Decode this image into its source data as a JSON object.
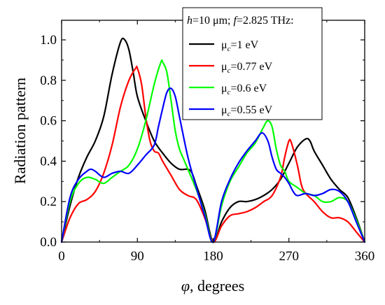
{
  "chart_data": {
    "type": "line",
    "xlabel_symbol": "φ",
    "xlabel_rest": ", degrees",
    "ylabel": "Radiation pattern",
    "xlim": [
      0,
      360
    ],
    "ylim": [
      0,
      1.05
    ],
    "xticks": [
      0,
      90,
      180,
      270,
      360
    ],
    "xtick_labels": [
      "0",
      "90",
      "180",
      "270",
      "360"
    ],
    "yticks": [
      0,
      0.2,
      0.4,
      0.6,
      0.8,
      1.0
    ],
    "ytick_labels": [
      "0.0",
      "0.2",
      "0.4",
      "0.6",
      "0.8",
      "1.0"
    ],
    "grid": false,
    "legend_position": "top-right",
    "legend_title": {
      "h_sym": "h",
      "h_val": "=10 μm; ",
      "f_sym": "f",
      "f_val": "=2.825 THz:"
    },
    "series": [
      {
        "name": "μc=1 eV",
        "label_mu": "μ",
        "label_sub": "c",
        "label_val": "=1 eV",
        "color": "#000000",
        "points": [
          [
            0,
            0
          ],
          [
            10,
            0.18
          ],
          [
            20,
            0.32
          ],
          [
            30,
            0.42
          ],
          [
            40,
            0.5
          ],
          [
            50,
            0.62
          ],
          [
            60,
            0.83
          ],
          [
            70,
            0.99
          ],
          [
            75,
            1.0
          ],
          [
            80,
            0.95
          ],
          [
            85,
            0.84
          ],
          [
            90,
            0.72
          ],
          [
            100,
            0.6
          ],
          [
            110,
            0.5
          ],
          [
            120,
            0.44
          ],
          [
            130,
            0.39
          ],
          [
            140,
            0.36
          ],
          [
            150,
            0.36
          ],
          [
            155,
            0.34
          ],
          [
            160,
            0.28
          ],
          [
            170,
            0.16
          ],
          [
            180,
            0.0
          ],
          [
            190,
            0.1
          ],
          [
            200,
            0.17
          ],
          [
            210,
            0.2
          ],
          [
            220,
            0.2
          ],
          [
            230,
            0.21
          ],
          [
            240,
            0.23
          ],
          [
            250,
            0.26
          ],
          [
            260,
            0.31
          ],
          [
            270,
            0.39
          ],
          [
            280,
            0.47
          ],
          [
            290,
            0.51
          ],
          [
            295,
            0.5
          ],
          [
            300,
            0.45
          ],
          [
            310,
            0.38
          ],
          [
            320,
            0.31
          ],
          [
            330,
            0.26
          ],
          [
            340,
            0.22
          ],
          [
            350,
            0.12
          ],
          [
            360,
            0.0
          ]
        ]
      },
      {
        "name": "μc=0.77 eV",
        "label_mu": "μ",
        "label_sub": "c",
        "label_val": "=0.77 eV",
        "color": "#ff0000",
        "points": [
          [
            0,
            0
          ],
          [
            10,
            0.12
          ],
          [
            20,
            0.19
          ],
          [
            30,
            0.21
          ],
          [
            40,
            0.25
          ],
          [
            50,
            0.34
          ],
          [
            60,
            0.48
          ],
          [
            70,
            0.67
          ],
          [
            80,
            0.8
          ],
          [
            88,
            0.86
          ],
          [
            90,
            0.86
          ],
          [
            95,
            0.78
          ],
          [
            100,
            0.62
          ],
          [
            105,
            0.5
          ],
          [
            110,
            0.45
          ],
          [
            115,
            0.44
          ],
          [
            120,
            0.4
          ],
          [
            130,
            0.33
          ],
          [
            140,
            0.26
          ],
          [
            150,
            0.23
          ],
          [
            160,
            0.21
          ],
          [
            170,
            0.12
          ],
          [
            180,
            0.0
          ],
          [
            190,
            0.08
          ],
          [
            200,
            0.13
          ],
          [
            210,
            0.14
          ],
          [
            220,
            0.15
          ],
          [
            230,
            0.17
          ],
          [
            240,
            0.2
          ],
          [
            250,
            0.23
          ],
          [
            260,
            0.32
          ],
          [
            265,
            0.42
          ],
          [
            270,
            0.5
          ],
          [
            273,
            0.49
          ],
          [
            280,
            0.38
          ],
          [
            285,
            0.28
          ],
          [
            290,
            0.24
          ],
          [
            300,
            0.2
          ],
          [
            310,
            0.15
          ],
          [
            320,
            0.12
          ],
          [
            330,
            0.12
          ],
          [
            340,
            0.1
          ],
          [
            350,
            0.05
          ],
          [
            360,
            0.0
          ]
        ]
      },
      {
        "name": "μc=0.6 eV",
        "label_mu": "μ",
        "label_sub": "c",
        "label_val": "=0.6 eV",
        "color": "#00ff00",
        "points": [
          [
            0,
            0
          ],
          [
            10,
            0.2
          ],
          [
            20,
            0.29
          ],
          [
            30,
            0.32
          ],
          [
            40,
            0.31
          ],
          [
            50,
            0.29
          ],
          [
            60,
            0.32
          ],
          [
            70,
            0.35
          ],
          [
            80,
            0.38
          ],
          [
            90,
            0.46
          ],
          [
            100,
            0.6
          ],
          [
            110,
            0.78
          ],
          [
            118,
            0.89
          ],
          [
            120,
            0.89
          ],
          [
            125,
            0.84
          ],
          [
            130,
            0.7
          ],
          [
            135,
            0.55
          ],
          [
            140,
            0.46
          ],
          [
            145,
            0.41
          ],
          [
            150,
            0.36
          ],
          [
            160,
            0.26
          ],
          [
            170,
            0.14
          ],
          [
            180,
            0.0
          ],
          [
            190,
            0.18
          ],
          [
            200,
            0.3
          ],
          [
            210,
            0.37
          ],
          [
            220,
            0.44
          ],
          [
            230,
            0.49
          ],
          [
            240,
            0.57
          ],
          [
            245,
            0.6
          ],
          [
            250,
            0.57
          ],
          [
            255,
            0.46
          ],
          [
            260,
            0.38
          ],
          [
            265,
            0.35
          ],
          [
            270,
            0.3
          ],
          [
            280,
            0.27
          ],
          [
            290,
            0.24
          ],
          [
            300,
            0.23
          ],
          [
            310,
            0.2
          ],
          [
            320,
            0.2
          ],
          [
            330,
            0.22
          ],
          [
            340,
            0.2
          ],
          [
            350,
            0.11
          ],
          [
            360,
            0.0
          ]
        ]
      },
      {
        "name": "μc=0.55 eV",
        "label_mu": "μ",
        "label_sub": "c",
        "label_val": "=0.55 eV",
        "color": "#0000ff",
        "points": [
          [
            0,
            0
          ],
          [
            10,
            0.22
          ],
          [
            20,
            0.31
          ],
          [
            30,
            0.35
          ],
          [
            35,
            0.36
          ],
          [
            40,
            0.35
          ],
          [
            50,
            0.32
          ],
          [
            60,
            0.34
          ],
          [
            70,
            0.35
          ],
          [
            80,
            0.34
          ],
          [
            90,
            0.38
          ],
          [
            100,
            0.43
          ],
          [
            110,
            0.48
          ],
          [
            115,
            0.57
          ],
          [
            120,
            0.66
          ],
          [
            125,
            0.74
          ],
          [
            130,
            0.76
          ],
          [
            135,
            0.72
          ],
          [
            140,
            0.62
          ],
          [
            150,
            0.42
          ],
          [
            160,
            0.27
          ],
          [
            170,
            0.13
          ],
          [
            180,
            0.0
          ],
          [
            190,
            0.2
          ],
          [
            200,
            0.31
          ],
          [
            210,
            0.39
          ],
          [
            220,
            0.45
          ],
          [
            230,
            0.5
          ],
          [
            238,
            0.54
          ],
          [
            245,
            0.5
          ],
          [
            250,
            0.42
          ],
          [
            255,
            0.36
          ],
          [
            260,
            0.34
          ],
          [
            265,
            0.32
          ],
          [
            270,
            0.29
          ],
          [
            275,
            0.25
          ],
          [
            280,
            0.23
          ],
          [
            290,
            0.24
          ],
          [
            300,
            0.23
          ],
          [
            310,
            0.24
          ],
          [
            320,
            0.26
          ],
          [
            330,
            0.25
          ],
          [
            340,
            0.2
          ],
          [
            350,
            0.1
          ],
          [
            360,
            0.0
          ]
        ]
      }
    ]
  }
}
